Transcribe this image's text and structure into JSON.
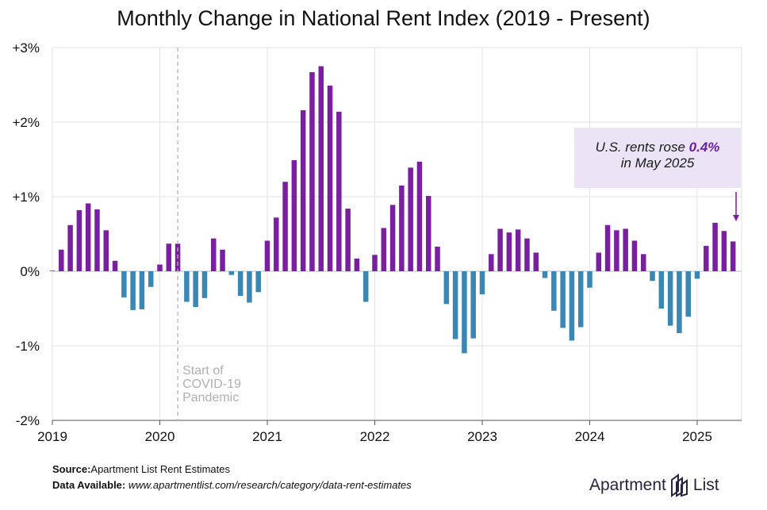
{
  "title": "Monthly Change in National Rent Index (2019 - Present)",
  "chart_data": {
    "type": "bar",
    "title": "Monthly Change in National Rent Index (2019 - Present)",
    "ylim": [
      -2,
      3
    ],
    "yticks": [
      3,
      2,
      1,
      0,
      -1,
      -2
    ],
    "ytick_labels": [
      "+3%",
      "+2%",
      "+1%",
      "0%",
      "-1%",
      "-2%"
    ],
    "x_tick_labels": [
      "2019",
      "2020",
      "2021",
      "2022",
      "2023",
      "2024",
      "2025"
    ],
    "start": "2019-01",
    "grid": true,
    "colors": {
      "positive": "#7b1fa2",
      "negative": "#3a86b4"
    },
    "series": [
      {
        "values": [
          0.0,
          0.29,
          0.62,
          0.82,
          0.91,
          0.83,
          0.55,
          0.14,
          -0.35,
          -0.52,
          -0.51,
          -0.21,
          0.09,
          0.37,
          0.37,
          -0.41,
          -0.48,
          -0.36,
          0.44,
          0.29,
          -0.05,
          -0.33,
          -0.42,
          -0.28,
          0.41,
          0.72,
          1.2,
          1.49,
          2.16,
          2.67,
          2.75,
          2.49,
          2.14,
          0.84,
          0.17,
          -0.41,
          0.22,
          0.58,
          0.89,
          1.15,
          1.39,
          1.47,
          1.01,
          0.33,
          -0.44,
          -0.91,
          -1.1,
          -0.9,
          -0.31,
          0.23,
          0.57,
          0.52,
          0.56,
          0.44,
          0.25,
          -0.09,
          -0.53,
          -0.76,
          -0.93,
          -0.75,
          -0.22,
          0.25,
          0.62,
          0.55,
          0.57,
          0.41,
          0.23,
          -0.13,
          -0.5,
          -0.73,
          -0.83,
          -0.61,
          -0.1,
          0.34,
          0.65,
          0.54,
          0.4
        ]
      }
    ],
    "annotations": [
      {
        "date": "2020-03",
        "label_lines": [
          "Start of",
          "COVID-19",
          "Pandemic"
        ]
      }
    ]
  },
  "callout": {
    "line1_prefix": "U.S. rents rose ",
    "line1_value": "0.4%",
    "line2": "in May 2025"
  },
  "footer": {
    "source_label": "Source:",
    "source_text": "Apartment List Rent Estimates",
    "available_label": "Data Available:",
    "available_text": "www.apartmentlist.com/research/category/data-rent-estimates"
  },
  "logo": {
    "word1": "Apartment",
    "word2": "List"
  }
}
